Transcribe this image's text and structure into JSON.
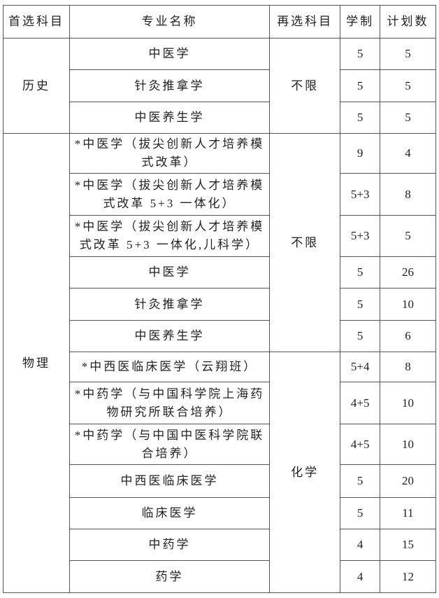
{
  "headers": [
    "首选科目",
    "专业名称",
    "再选科目",
    "学制",
    "计划数"
  ],
  "groups": {
    "history": "历史",
    "physics": "物理"
  },
  "reselect": {
    "history": "不限",
    "physics_a": "不限",
    "physics_b": "化学"
  },
  "rows": [
    {
      "major": "中医学",
      "years": "5",
      "plan": "5"
    },
    {
      "major": "针灸推拿学",
      "years": "5",
      "plan": "5"
    },
    {
      "major": "中医养生学",
      "years": "5",
      "plan": "5"
    },
    {
      "major": "*中医学（拔尖创新人才培养模式改革）",
      "years": "9",
      "plan": "4"
    },
    {
      "major": "*中医学（拔尖创新人才培养模式改革 5+3 一体化）",
      "years": "5+3",
      "plan": "8"
    },
    {
      "major": "*中医学（拔尖创新人才培养模式改革 5+3 一体化,儿科学）",
      "years": "5+3",
      "plan": "5"
    },
    {
      "major": "中医学",
      "years": "5",
      "plan": "26"
    },
    {
      "major": "针灸推拿学",
      "years": "5",
      "plan": "10"
    },
    {
      "major": "中医养生学",
      "years": "5",
      "plan": "6"
    },
    {
      "major": "*中西医临床医学（云翔班）",
      "years": "5+4",
      "plan": "8"
    },
    {
      "major": "*中药学（与中国科学院上海药物研究所联合培养）",
      "years": "4+5",
      "plan": "10"
    },
    {
      "major": "*中药学（与中国中医科学院联合培养）",
      "years": "4+5",
      "plan": "10"
    },
    {
      "major": "中西医临床医学",
      "years": "5",
      "plan": "20"
    },
    {
      "major": "临床医学",
      "years": "5",
      "plan": "11"
    },
    {
      "major": "中药学",
      "years": "4",
      "plan": "15"
    },
    {
      "major": "药学",
      "years": "4",
      "plan": "12"
    }
  ]
}
